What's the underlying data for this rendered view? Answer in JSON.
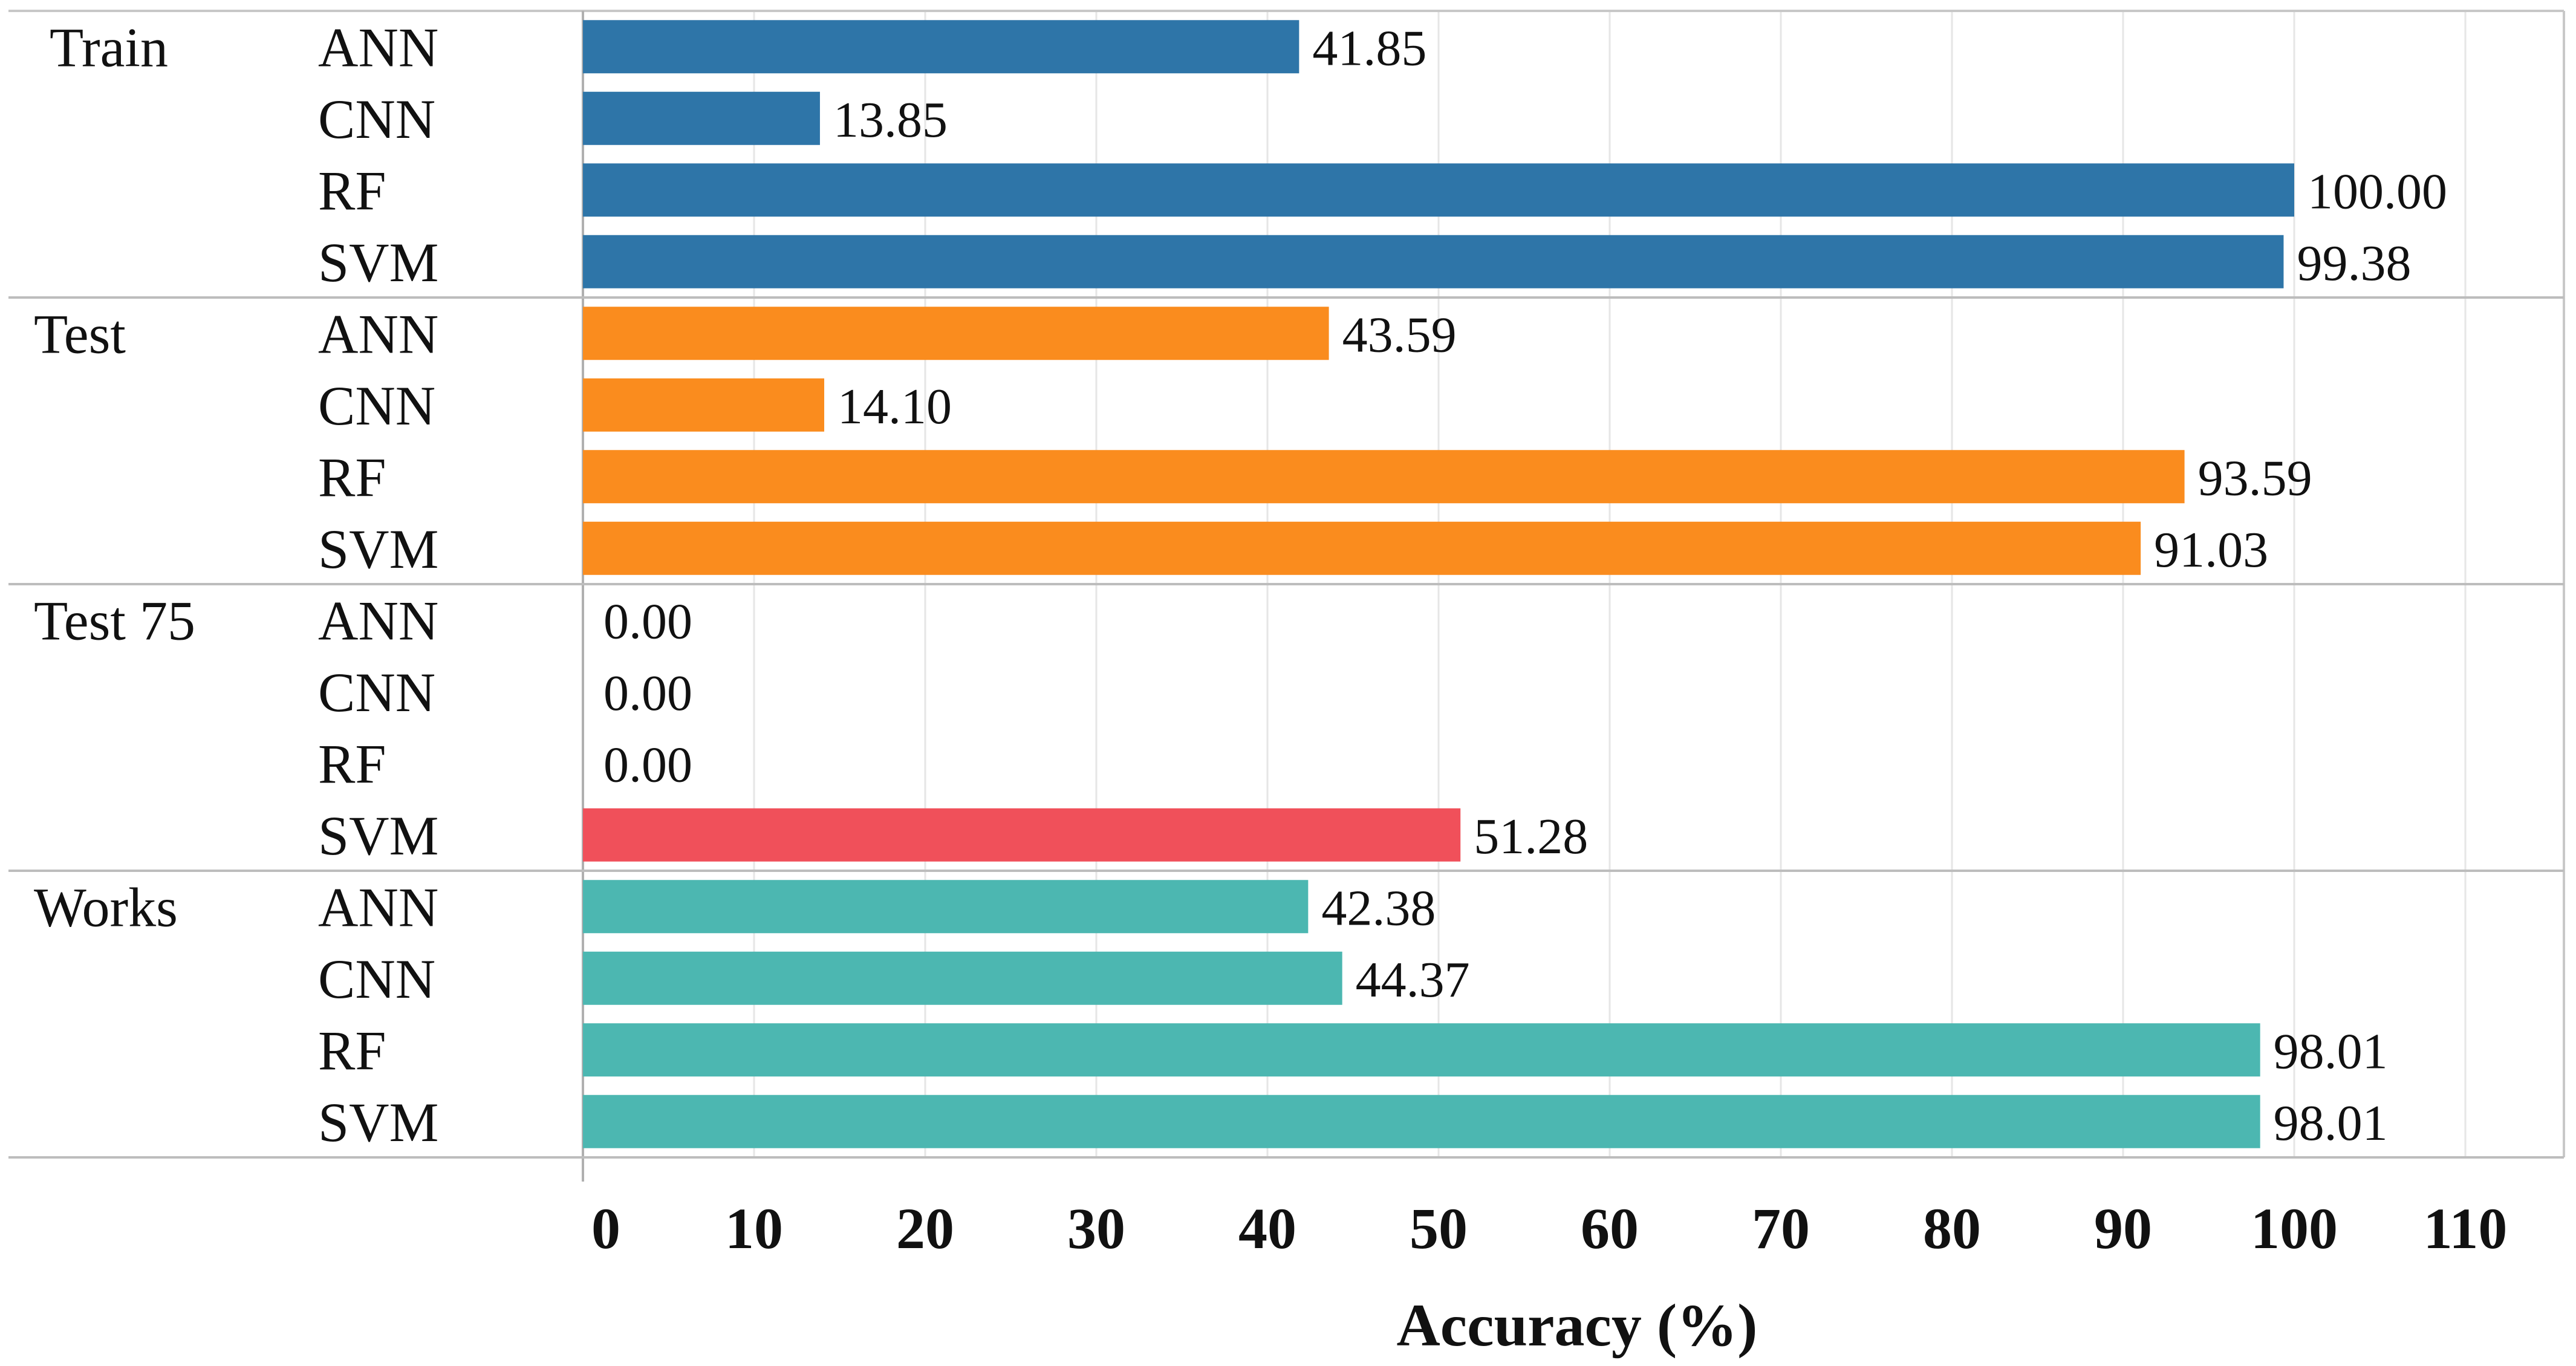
{
  "chart_data": {
    "type": "bar",
    "orientation": "horizontal",
    "xlabel": "Accuracy (%)",
    "xlim": [
      0,
      110
    ],
    "xticks": [
      0,
      10,
      20,
      30,
      40,
      50,
      60,
      70,
      80,
      90,
      100,
      110
    ],
    "grid": "vertical",
    "groups": [
      {
        "name": "Train",
        "color": "#2e75a8",
        "bars": [
          {
            "label": "ANN",
            "value": 41.85,
            "text": "41.85"
          },
          {
            "label": "CNN",
            "value": 13.85,
            "text": "13.85"
          },
          {
            "label": "RF",
            "value": 100.0,
            "text": "100.00"
          },
          {
            "label": "SVM",
            "value": 99.38,
            "text": "99.38"
          }
        ]
      },
      {
        "name": "Test",
        "color": "#fa8c1e",
        "bars": [
          {
            "label": "ANN",
            "value": 43.59,
            "text": "43.59"
          },
          {
            "label": "CNN",
            "value": 14.1,
            "text": "14.10"
          },
          {
            "label": "RF",
            "value": 93.59,
            "text": "93.59"
          },
          {
            "label": "SVM",
            "value": 91.03,
            "text": "91.03"
          }
        ]
      },
      {
        "name": "Test 75",
        "color": "#f0505a",
        "bars": [
          {
            "label": "ANN",
            "value": 0.0,
            "text": "0.00"
          },
          {
            "label": "CNN",
            "value": 0.0,
            "text": "0.00"
          },
          {
            "label": "RF",
            "value": 0.0,
            "text": "0.00"
          },
          {
            "label": "SVM",
            "value": 51.28,
            "text": "51.28"
          }
        ]
      },
      {
        "name": "Works",
        "color": "#4cb7b1",
        "bars": [
          {
            "label": "ANN",
            "value": 42.38,
            "text": "42.38"
          },
          {
            "label": "CNN",
            "value": 44.37,
            "text": "44.37"
          },
          {
            "label": "RF",
            "value": 98.01,
            "text": "98.01"
          },
          {
            "label": "SVM",
            "value": 98.01,
            "text": "98.01"
          }
        ]
      }
    ]
  }
}
